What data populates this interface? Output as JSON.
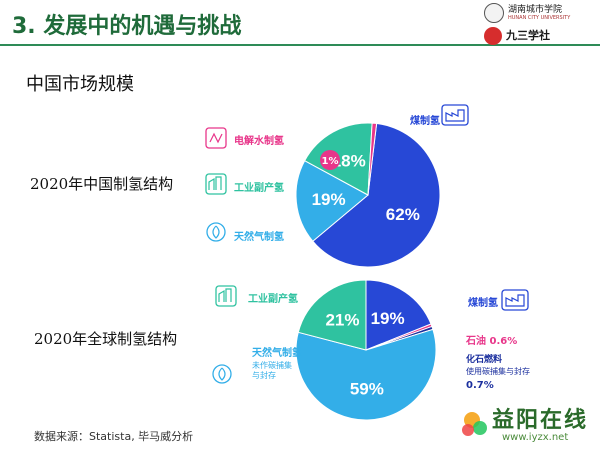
{
  "slide": {
    "title": "3. 发展中的机遇与挑战",
    "section_heading": "中国市场规模",
    "source_note": "数据来源：Statista, 毕马威分析"
  },
  "logos": {
    "university_name": "湖南城市学院",
    "university_subtitle": "HUNAN CITY UNIVERSITY",
    "club_name": "九三学社"
  },
  "watermark": {
    "name_cn": "益阳在线",
    "url": "www.iyzx.net"
  },
  "colors": {
    "title_green": "#1f6b3a",
    "coal_blue": "#2748d6",
    "industrial_teal": "#2fc2a0",
    "natural_gas_sky": "#33aee8",
    "electrolysis_pink": "#e8368a",
    "oil_pink": "#e8368a",
    "ccs_blue": "#1b2f9e"
  },
  "chart_data": [
    {
      "type": "pie",
      "title": "2020年中国制氢结构",
      "categories": [
        "煤制氢",
        "天然气制氢",
        "工业副产氢",
        "电解水制氢"
      ],
      "values": [
        62,
        19,
        18,
        1
      ],
      "data_labels": [
        "62%",
        "19%",
        "18%",
        "1%"
      ],
      "legend_icons": [
        "factory-icon",
        "fire-icon",
        "plant-icon",
        "power-icon"
      ]
    },
    {
      "type": "pie",
      "title": "2020年全球制氢结构",
      "categories": [
        "煤制氢",
        "石油",
        "化石燃料 使用碳捕集与封存",
        "天然气制氢 未作碳捕集与封存",
        "工业副产氢"
      ],
      "values": [
        19,
        0.6,
        0.7,
        59,
        21
      ],
      "data_labels": [
        "19%",
        "0.6%",
        "0.7%",
        "59%",
        "21%"
      ],
      "outside_labels": {
        "oil": "石油 0.6%",
        "ccs_title": "化石燃料",
        "ccs_sub": "使用碳捕集与封存",
        "ccs_value": "0.7%",
        "gas_title": "天然气制氢",
        "gas_sub1": "未作碳捕集",
        "gas_sub2": "与封存"
      }
    }
  ]
}
